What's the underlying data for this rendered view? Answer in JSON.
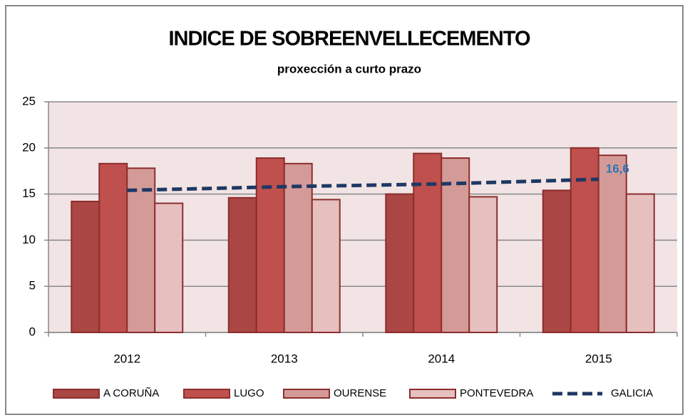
{
  "chart_data": {
    "type": "bar",
    "title": "INDICE DE SOBREENVELLECEMENTO",
    "subtitle": "proxección a curto prazo",
    "categories": [
      "2012",
      "2013",
      "2014",
      "2015"
    ],
    "series": [
      {
        "name": "A CORUÑA",
        "color": "#aa4643",
        "values": [
          14.2,
          14.6,
          15.0,
          15.4
        ]
      },
      {
        "name": "LUGO",
        "color": "#c0504d",
        "values": [
          18.3,
          18.9,
          19.4,
          20.0
        ]
      },
      {
        "name": "OURENSE",
        "color": "#d49a98",
        "values": [
          17.8,
          18.3,
          18.9,
          19.2
        ]
      },
      {
        "name": "PONTEVEDRA",
        "color": "#e6bfbf",
        "values": [
          14.0,
          14.4,
          14.7,
          15.0
        ]
      },
      {
        "name": "GALICIA",
        "type": "line",
        "color": "#1f3864",
        "values": [
          15.4,
          15.8,
          16.1,
          16.6
        ],
        "value_labels": [
          null,
          null,
          null,
          "16,6"
        ]
      }
    ],
    "ylim": [
      0,
      25
    ],
    "yticks": [
      0,
      5,
      10,
      15,
      20,
      25
    ],
    "grid": true,
    "legend": "bottom"
  }
}
